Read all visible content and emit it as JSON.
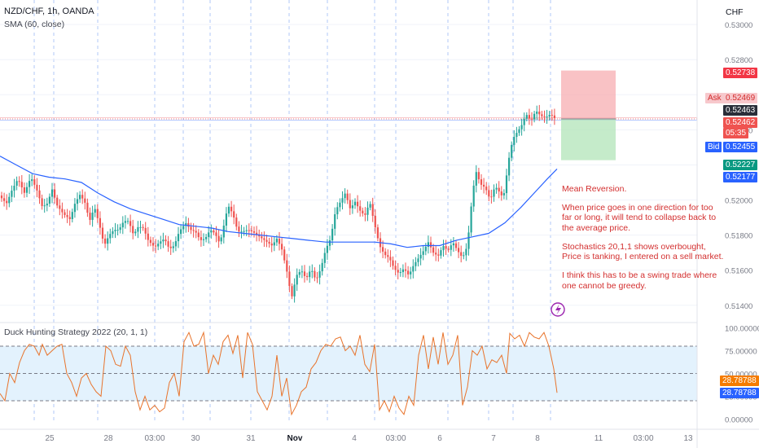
{
  "header": {
    "symbol": "NZD/CHF, 1h, OANDA",
    "indicator": "SMA (60, close)",
    "currency": "CHF"
  },
  "note": [
    "Mean Reversion.",
    "When price goes in one direction for too far or long, it will tend to collapse back to the average price.",
    "Stochastics 20,1,1 shows overbought, Price is tanking, I entered on a sell market.",
    "I think this has to be a swing trade where one cannot be greedy."
  ],
  "tags": {
    "tp_price": "0.52738",
    "ask_label": "Ask",
    "ask_price": "0.52469",
    "last_price": "0.52463",
    "current_price": "0.52462",
    "countdown": "05:35",
    "bid_label": "Bid",
    "bid_price": "0.52455",
    "sl_price": "0.52227",
    "sma_value": "0.52177",
    "osc_value1": "28.78788",
    "osc_value2": "28.78788"
  },
  "colors": {
    "candle_up": "#26a69a",
    "candle_down": "#ef5350",
    "sma": "#2962ff",
    "oscillator": "#e8732b",
    "band": "#e3f2fd",
    "vgrid": "#5b8def"
  },
  "chart_data": [
    {
      "type": "candlestick",
      "title": "NZD/CHF, 1h, OANDA",
      "ylim": [
        0.5132,
        0.5314
      ],
      "yticks": [
        "0.53000",
        "0.52800",
        "0.52600",
        "0.52400",
        "0.52200",
        "0.52000",
        "0.51800",
        "0.51600",
        "0.51400"
      ],
      "xticks": [
        "25",
        "28",
        "03:00",
        "30",
        "31",
        "Nov",
        "4",
        "03:00",
        "6",
        "7",
        "8",
        "11",
        "03:00",
        "13"
      ],
      "price_path": [
        [
          0,
          0.5202
        ],
        [
          8,
          0.5198
        ],
        [
          15,
          0.5206
        ],
        [
          22,
          0.5212
        ],
        [
          30,
          0.5204
        ],
        [
          38,
          0.5213
        ],
        [
          45,
          0.5206
        ],
        [
          52,
          0.5196
        ],
        [
          58,
          0.5198
        ],
        [
          64,
          0.5206
        ],
        [
          70,
          0.5197
        ],
        [
          78,
          0.5192
        ],
        [
          86,
          0.5189
        ],
        [
          92,
          0.5198
        ],
        [
          98,
          0.5203
        ],
        [
          104,
          0.5199
        ],
        [
          110,
          0.5188
        ],
        [
          116,
          0.5196
        ],
        [
          122,
          0.5186
        ],
        [
          128,
          0.5174
        ],
        [
          134,
          0.518
        ],
        [
          140,
          0.5183
        ],
        [
          146,
          0.5183
        ],
        [
          152,
          0.5188
        ],
        [
          158,
          0.5188
        ],
        [
          164,
          0.518
        ],
        [
          170,
          0.5185
        ],
        [
          176,
          0.5184
        ],
        [
          182,
          0.5177
        ],
        [
          190,
          0.5173
        ],
        [
          196,
          0.5176
        ],
        [
          202,
          0.5178
        ],
        [
          208,
          0.5172
        ],
        [
          214,
          0.5174
        ],
        [
          220,
          0.5182
        ],
        [
          228,
          0.5187
        ],
        [
          234,
          0.5183
        ],
        [
          240,
          0.5182
        ],
        [
          246,
          0.5177
        ],
        [
          252,
          0.5178
        ],
        [
          258,
          0.5183
        ],
        [
          264,
          0.5181
        ],
        [
          270,
          0.5175
        ],
        [
          276,
          0.5188
        ],
        [
          280,
          0.5197
        ],
        [
          286,
          0.5192
        ],
        [
          292,
          0.5182
        ],
        [
          298,
          0.5182
        ],
        [
          304,
          0.5183
        ],
        [
          310,
          0.5182
        ],
        [
          316,
          0.518
        ],
        [
          322,
          0.5178
        ],
        [
          328,
          0.5176
        ],
        [
          334,
          0.5174
        ],
        [
          340,
          0.5178
        ],
        [
          346,
          0.5172
        ],
        [
          352,
          0.516
        ],
        [
          358,
          0.5144
        ],
        [
          364,
          0.5157
        ],
        [
          370,
          0.516
        ],
        [
          376,
          0.5155
        ],
        [
          382,
          0.5161
        ],
        [
          388,
          0.5154
        ],
        [
          394,
          0.5161
        ],
        [
          400,
          0.5172
        ],
        [
          406,
          0.5178
        ],
        [
          412,
          0.5194
        ],
        [
          418,
          0.5199
        ],
        [
          424,
          0.5204
        ],
        [
          430,
          0.5195
        ],
        [
          436,
          0.5199
        ],
        [
          442,
          0.5194
        ],
        [
          448,
          0.5191
        ],
        [
          454,
          0.5199
        ],
        [
          460,
          0.5186
        ],
        [
          466,
          0.5174
        ],
        [
          472,
          0.5169
        ],
        [
          478,
          0.5167
        ],
        [
          484,
          0.5161
        ],
        [
          490,
          0.5158
        ],
        [
          496,
          0.5161
        ],
        [
          502,
          0.5157
        ],
        [
          508,
          0.5163
        ],
        [
          514,
          0.5167
        ],
        [
          520,
          0.5171
        ],
        [
          526,
          0.5176
        ],
        [
          532,
          0.517
        ],
        [
          538,
          0.5168
        ],
        [
          544,
          0.5174
        ],
        [
          550,
          0.5171
        ],
        [
          556,
          0.5176
        ],
        [
          562,
          0.5171
        ],
        [
          568,
          0.5167
        ],
        [
          574,
          0.5174
        ],
        [
          578,
          0.5194
        ],
        [
          584,
          0.5217
        ],
        [
          590,
          0.5209
        ],
        [
          596,
          0.5207
        ],
        [
          602,
          0.52
        ],
        [
          608,
          0.5208
        ],
        [
          614,
          0.5204
        ],
        [
          618,
          0.5201
        ],
        [
          622,
          0.5214
        ],
        [
          626,
          0.5227
        ],
        [
          630,
          0.5235
        ],
        [
          634,
          0.5238
        ],
        [
          640,
          0.5242
        ],
        [
          646,
          0.5249
        ],
        [
          652,
          0.5245
        ],
        [
          658,
          0.5251
        ],
        [
          664,
          0.5248
        ],
        [
          670,
          0.5247
        ],
        [
          676,
          0.5249
        ],
        [
          682,
          0.52462
        ]
      ],
      "sma_path": [
        [
          0,
          0.5225
        ],
        [
          20,
          0.522
        ],
        [
          40,
          0.5215
        ],
        [
          60,
          0.5213
        ],
        [
          80,
          0.5212
        ],
        [
          100,
          0.521
        ],
        [
          120,
          0.5204
        ],
        [
          140,
          0.5199
        ],
        [
          160,
          0.5195
        ],
        [
          180,
          0.5192
        ],
        [
          200,
          0.5189
        ],
        [
          220,
          0.5186
        ],
        [
          240,
          0.5185
        ],
        [
          260,
          0.5184
        ],
        [
          280,
          0.5182
        ],
        [
          300,
          0.5181
        ],
        [
          320,
          0.518
        ],
        [
          340,
          0.5179
        ],
        [
          360,
          0.5178
        ],
        [
          380,
          0.5177
        ],
        [
          400,
          0.5176
        ],
        [
          420,
          0.5176
        ],
        [
          440,
          0.5176
        ],
        [
          460,
          0.5176
        ],
        [
          480,
          0.5175
        ],
        [
          500,
          0.5173
        ],
        [
          520,
          0.5174
        ],
        [
          540,
          0.5174
        ],
        [
          560,
          0.5177
        ],
        [
          580,
          0.5179
        ],
        [
          600,
          0.5181
        ],
        [
          620,
          0.5187
        ],
        [
          640,
          0.5196
        ],
        [
          660,
          0.5206
        ],
        [
          672,
          0.5212
        ],
        [
          684,
          0.52177
        ]
      ],
      "position": {
        "entry": 0.52462,
        "take_profit": 0.52738,
        "stop_loss": 0.52227
      }
    },
    {
      "type": "line",
      "title": "Duck Hunting Strategy 2022 (20, 1, 1)",
      "ylim": [
        -5,
        105
      ],
      "yticks": [
        "100.00000",
        "75.00000",
        "50.00000",
        "25.00000",
        "0.00000"
      ],
      "band": [
        20,
        80
      ],
      "levels": [
        80,
        50,
        20
      ],
      "series": [
        {
          "values": [
            [
              0,
              28
            ],
            [
              6,
              20
            ],
            [
              12,
              50
            ],
            [
              18,
              40
            ],
            [
              24,
              62
            ],
            [
              30,
              75
            ],
            [
              36,
              82
            ],
            [
              42,
              80
            ],
            [
              48,
              70
            ],
            [
              52,
              82
            ],
            [
              58,
              70
            ],
            [
              64,
              75
            ],
            [
              70,
              80
            ],
            [
              76,
              82
            ],
            [
              82,
              50
            ],
            [
              88,
              40
            ],
            [
              94,
              25
            ],
            [
              100,
              45
            ],
            [
              106,
              50
            ],
            [
              112,
              38
            ],
            [
              118,
              30
            ],
            [
              124,
              25
            ],
            [
              130,
              80
            ],
            [
              136,
              75
            ],
            [
              142,
              60
            ],
            [
              148,
              58
            ],
            [
              154,
              80
            ],
            [
              160,
              70
            ],
            [
              166,
              30
            ],
            [
              172,
              10
            ],
            [
              178,
              25
            ],
            [
              184,
              10
            ],
            [
              190,
              15
            ],
            [
              196,
              8
            ],
            [
              202,
              12
            ],
            [
              208,
              40
            ],
            [
              214,
              50
            ],
            [
              220,
              25
            ],
            [
              226,
              85
            ],
            [
              232,
              95
            ],
            [
              238,
              80
            ],
            [
              244,
              82
            ],
            [
              250,
              95
            ],
            [
              256,
              50
            ],
            [
              262,
              70
            ],
            [
              268,
              60
            ],
            [
              274,
              85
            ],
            [
              280,
              92
            ],
            [
              286,
              72
            ],
            [
              292,
              92
            ],
            [
              298,
              45
            ],
            [
              304,
              95
            ],
            [
              310,
              82
            ],
            [
              316,
              30
            ],
            [
              322,
              20
            ],
            [
              328,
              10
            ],
            [
              334,
              25
            ],
            [
              340,
              70
            ],
            [
              346,
              25
            ],
            [
              352,
              45
            ],
            [
              358,
              5
            ],
            [
              364,
              15
            ],
            [
              370,
              30
            ],
            [
              376,
              35
            ],
            [
              382,
              55
            ],
            [
              388,
              62
            ],
            [
              394,
              75
            ],
            [
              400,
              82
            ],
            [
              406,
              80
            ],
            [
              412,
              88
            ],
            [
              418,
              90
            ],
            [
              424,
              75
            ],
            [
              430,
              80
            ],
            [
              436,
              70
            ],
            [
              442,
              92
            ],
            [
              448,
              60
            ],
            [
              454,
              52
            ],
            [
              460,
              82
            ],
            [
              466,
              10
            ],
            [
              472,
              20
            ],
            [
              478,
              8
            ],
            [
              484,
              25
            ],
            [
              490,
              12
            ],
            [
              496,
              5
            ],
            [
              502,
              25
            ],
            [
              508,
              15
            ],
            [
              514,
              70
            ],
            [
              520,
              92
            ],
            [
              526,
              55
            ],
            [
              532,
              90
            ],
            [
              538,
              60
            ],
            [
              544,
              95
            ],
            [
              550,
              60
            ],
            [
              556,
              70
            ],
            [
              562,
              92
            ],
            [
              568,
              15
            ],
            [
              574,
              35
            ],
            [
              580,
              75
            ],
            [
              586,
              70
            ],
            [
              592,
              80
            ],
            [
              598,
              55
            ],
            [
              604,
              65
            ],
            [
              610,
              62
            ],
            [
              616,
              70
            ],
            [
              622,
              50
            ],
            [
              626,
              94
            ],
            [
              632,
              88
            ],
            [
              638,
              92
            ],
            [
              644,
              80
            ],
            [
              650,
              95
            ],
            [
              656,
              90
            ],
            [
              662,
              88
            ],
            [
              668,
              95
            ],
            [
              674,
              80
            ],
            [
              680,
              55
            ],
            [
              684,
              28.78788
            ]
          ]
        }
      ]
    }
  ]
}
